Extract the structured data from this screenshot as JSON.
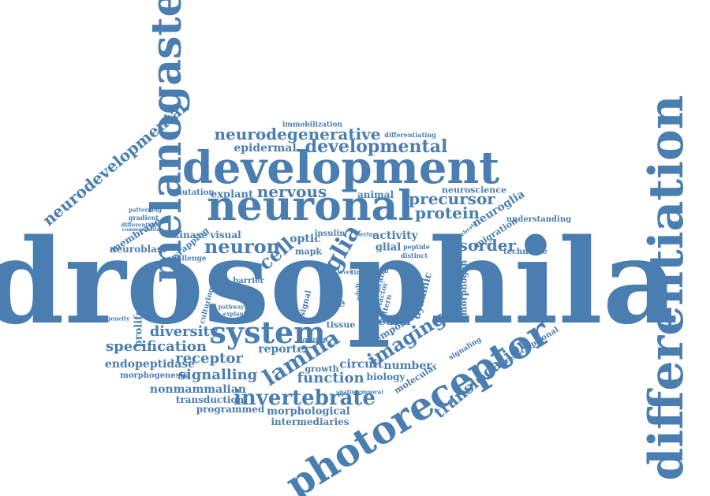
{
  "palette": {
    "word": "#4a7eb0",
    "background": "#ffffff"
  },
  "words": {
    "drosophila": "drosophila",
    "differentiation": "differentiation",
    "melanogaster": "melanogaster",
    "development": "development",
    "neuronal": "neuronal",
    "photoreceptor": "photoreceptor",
    "system": "system",
    "neurodevelopmental": "neurodevelopmental",
    "developmental": "developmental",
    "neurodegenerative": "neurodegenerative",
    "lamina": "lamina",
    "invertebrate": "invertebrate",
    "glia": "glia",
    "neuron": "neuron",
    "nervous": "nervous",
    "imaging": "imaging",
    "translocation": "translocation",
    "protein": "protein",
    "precursor": "precursor",
    "disorder": "disorder",
    "function": "function",
    "specification": "specification",
    "receptor": "receptor",
    "signalling": "signalling",
    "diversity": "diversity",
    "cell": "cell",
    "epidermal": "epidermal",
    "endopeptidase": "endopeptidase",
    "nonmammalian": "nonmammalian",
    "transduction": "transduction",
    "programmed": "programmed",
    "morphological": "morphological",
    "intermediaries": "intermediaries",
    "circuit": "circuit",
    "number": "number",
    "reporter": "reporter",
    "growth": "growth",
    "biology": "biology",
    "molecular": "molecular",
    "morphogenesis": "morphogenesis",
    "membrane": "membrane",
    "neuroblast": "neuroblast",
    "kinase": "kinase",
    "visual": "visual",
    "explant": "explant",
    "mutation": "mutation",
    "wrapping": "wrapping",
    "challenge": "challenge",
    "proliferation": "proliferation",
    "barrier": "barrier",
    "lobe": "lobe",
    "tissue": "tissue",
    "neural": "neural",
    "temporal": "temporal",
    "activity": "activity",
    "glial": "glial",
    "insulin": "insulin",
    "optic": "optic",
    "mapk": "mapk",
    "animal": "animal",
    "neuroscience": "neuroscience",
    "neuroglia": "neuroglia",
    "migration": "migration",
    "technique": "technique",
    "understanding": "understanding",
    "dynamic": "dynamic",
    "morphogen": "morphogen",
    "transcriptional": "transcriptional",
    "signaling": "signaling",
    "immobilization": "immobilization",
    "differentiating": "differentiating",
    "patterning": "patterning",
    "gradient": "gradient",
    "differentiate": "differentiate",
    "peptide": "peptide",
    "distinct": "distinct",
    "serine": "serine",
    "culturing": "culturing",
    "pathway": "pathway",
    "explanted": "explanted",
    "signal": "signal",
    "column": "column",
    "death": "death",
    "brain": "brain",
    "factor": "factor",
    "pattern": "pattern",
    "time": "time",
    "adult": "adult",
    "level": "level",
    "vertebrate": "vertebrate",
    "spatiotemporal": "spatiotemporal",
    "heterogeneity": "heterogeneity",
    "communication": "communication"
  }
}
